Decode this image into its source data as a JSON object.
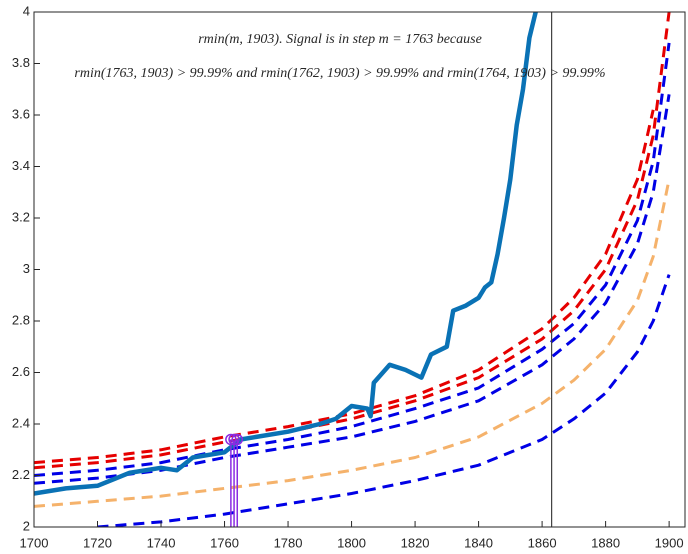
{
  "chart_data": {
    "type": "line",
    "annotations": [
      "rmin(m, 1903). Signal is in step m = 1763 because",
      "rmin(1763, 1903) > 99.99% and rmin(1762, 1903) > 99.99% and rmin(1764, 1903) > 99.99%"
    ],
    "xlim": [
      1700,
      1905
    ],
    "ylim": [
      2,
      4
    ],
    "xticks": [
      1700,
      1720,
      1740,
      1760,
      1780,
      1800,
      1820,
      1840,
      1860,
      1880,
      1900
    ],
    "yticks": [
      2,
      2.2,
      2.4,
      2.6,
      2.8,
      3,
      3.2,
      3.4,
      3.6,
      3.8,
      4
    ],
    "vline": 1863,
    "vline_color": "#404040",
    "series": [
      {
        "color": "#e60000",
        "dash": true,
        "x": [
          1700,
          1720,
          1740,
          1760,
          1780,
          1800,
          1820,
          1840,
          1860,
          1870,
          1880,
          1890,
          1895,
          1900
        ],
        "values": [
          2.25,
          2.27,
          2.3,
          2.35,
          2.39,
          2.44,
          2.51,
          2.61,
          2.77,
          2.89,
          3.06,
          3.35,
          3.62,
          null
        ]
      },
      {
        "color": "#e60000",
        "dash": true,
        "x": [
          1700,
          1720,
          1740,
          1760,
          1780,
          1800,
          1820,
          1840,
          1860,
          1870,
          1880,
          1890,
          1895,
          1900
        ],
        "values": [
          2.23,
          2.25,
          2.28,
          2.33,
          2.37,
          2.42,
          2.49,
          2.58,
          2.73,
          2.84,
          3.0,
          3.27,
          3.52,
          4.0
        ]
      },
      {
        "color": "#0000e6",
        "dash": true,
        "x": [
          1700,
          1720,
          1740,
          1760,
          1780,
          1800,
          1820,
          1840,
          1860,
          1870,
          1880,
          1890,
          1895,
          1900
        ],
        "values": [
          2.2,
          2.22,
          2.25,
          2.3,
          2.34,
          2.39,
          2.46,
          2.54,
          2.69,
          2.79,
          2.94,
          3.19,
          3.42,
          3.88
        ]
      },
      {
        "color": "#0000e6",
        "dash": true,
        "x": [
          1700,
          1720,
          1740,
          1760,
          1780,
          1800,
          1820,
          1840,
          1860,
          1870,
          1880,
          1890,
          1895,
          1900
        ],
        "values": [
          2.17,
          2.19,
          2.22,
          2.27,
          2.31,
          2.35,
          2.41,
          2.49,
          2.63,
          2.73,
          2.87,
          3.1,
          3.3,
          3.68
        ]
      },
      {
        "color": "#f5b26b",
        "dash": true,
        "x": [
          1700,
          1720,
          1740,
          1760,
          1780,
          1800,
          1820,
          1840,
          1860,
          1870,
          1880,
          1890,
          1895,
          1900
        ],
        "values": [
          2.08,
          2.1,
          2.12,
          2.15,
          2.18,
          2.22,
          2.27,
          2.35,
          2.48,
          2.57,
          2.69,
          2.88,
          3.05,
          3.35
        ]
      },
      {
        "color": "#0000e6",
        "dash": true,
        "x": [
          1700,
          1720,
          1740,
          1760,
          1780,
          1800,
          1820,
          1840,
          1860,
          1870,
          1880,
          1890,
          1895,
          1900
        ],
        "values": [
          null,
          2.0,
          2.02,
          2.05,
          2.09,
          2.13,
          2.18,
          2.24,
          2.34,
          2.42,
          2.52,
          2.68,
          2.8,
          2.98
        ]
      },
      {
        "color": "#0a72b5",
        "dash": false,
        "x": [
          1700,
          1710,
          1720,
          1730,
          1740,
          1745,
          1750,
          1760,
          1765,
          1770,
          1780,
          1790,
          1795,
          1800,
          1805,
          1806,
          1807,
          1812,
          1817,
          1822,
          1825,
          1830,
          1832,
          1836,
          1840,
          1842,
          1844,
          1846,
          1848,
          1850,
          1852,
          1854,
          1856,
          1858
        ],
        "values": [
          2.13,
          2.15,
          2.16,
          2.21,
          2.23,
          2.22,
          2.27,
          2.29,
          2.34,
          2.35,
          2.37,
          2.4,
          2.42,
          2.47,
          2.46,
          2.43,
          2.56,
          2.63,
          2.61,
          2.58,
          2.67,
          2.7,
          2.84,
          2.86,
          2.89,
          2.93,
          2.95,
          3.06,
          3.2,
          3.35,
          3.56,
          3.7,
          3.9,
          4.0
        ]
      }
    ],
    "markers": {
      "color": "#8a2be2",
      "x": [
        1762,
        1763,
        1764
      ],
      "values": [
        2.34,
        2.34,
        2.34
      ]
    }
  }
}
